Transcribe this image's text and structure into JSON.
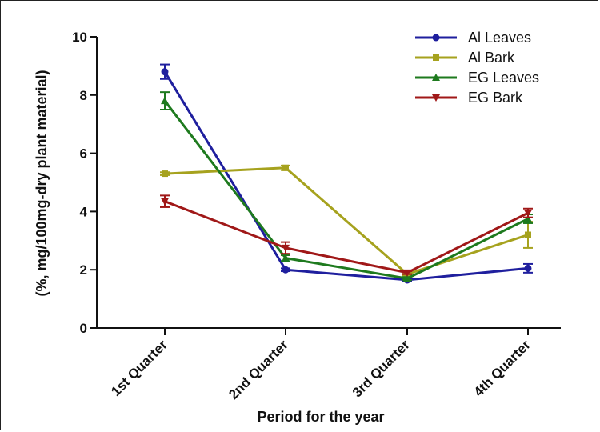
{
  "chart_data": {
    "type": "line",
    "title": "",
    "xlabel": "Period for the year",
    "ylabel": "(%, mg/100mg-dry plant material)",
    "categories": [
      "1st Quarter",
      "2nd Quarter",
      "3rd Quarter",
      "4th Quarter"
    ],
    "ylim": [
      0,
      10
    ],
    "yticks": [
      "0",
      "2",
      "4",
      "6",
      "8",
      "10"
    ],
    "grid": false,
    "legend_position": "top-right",
    "series": [
      {
        "name": "Al Leaves",
        "color": "#1f1f9e",
        "marker": "circle",
        "values": [
          8.8,
          2.0,
          1.65,
          2.05
        ],
        "errors": [
          0.25,
          0.05,
          0.05,
          0.15
        ]
      },
      {
        "name": "Al Bark",
        "color": "#a6a21e",
        "marker": "square",
        "values": [
          5.3,
          5.5,
          1.85,
          3.2
        ],
        "errors": [
          0.05,
          0.08,
          0.05,
          0.45
        ]
      },
      {
        "name": "EG Leaves",
        "color": "#1e7a1e",
        "marker": "triangle-up",
        "values": [
          7.8,
          2.4,
          1.7,
          3.75
        ],
        "errors": [
          0.3,
          0.1,
          0.05,
          0.15
        ]
      },
      {
        "name": "EG Bark",
        "color": "#a01818",
        "marker": "triangle-down",
        "values": [
          4.35,
          2.75,
          1.9,
          3.95
        ],
        "errors": [
          0.2,
          0.2,
          0.05,
          0.15
        ]
      }
    ]
  }
}
